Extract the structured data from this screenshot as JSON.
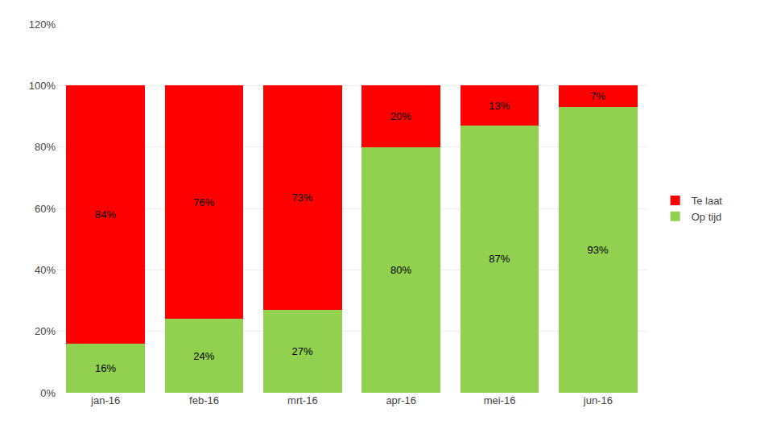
{
  "chart_data": {
    "type": "bar",
    "categories": [
      "jan-16",
      "feb-16",
      "mrt-16",
      "apr-16",
      "mei-16",
      "jun-16"
    ],
    "series": [
      {
        "name": "Op tijd",
        "color": "#92D050",
        "values": [
          16,
          24,
          27,
          80,
          87,
          93
        ],
        "value_labels": [
          "16%",
          "24%",
          "27%",
          "80%",
          "87%",
          "93%"
        ]
      },
      {
        "name": "Te laat",
        "color": "#FF0000",
        "values": [
          84,
          76,
          73,
          20,
          13,
          7
        ],
        "value_labels": [
          "84%",
          "76%",
          "73%",
          "20%",
          "13%",
          "7%"
        ]
      }
    ],
    "stacked": true,
    "data_labels": true,
    "ylim": [
      0,
      120
    ],
    "yticks": [
      {
        "value": 0,
        "label": "0%"
      },
      {
        "value": 20,
        "label": "20%"
      },
      {
        "value": 40,
        "label": "40%"
      },
      {
        "value": 60,
        "label": "60%"
      },
      {
        "value": 80,
        "label": "80%"
      },
      {
        "value": 100,
        "label": "100%"
      },
      {
        "value": 120,
        "label": "120%"
      }
    ],
    "grid": true,
    "legend": "right"
  }
}
